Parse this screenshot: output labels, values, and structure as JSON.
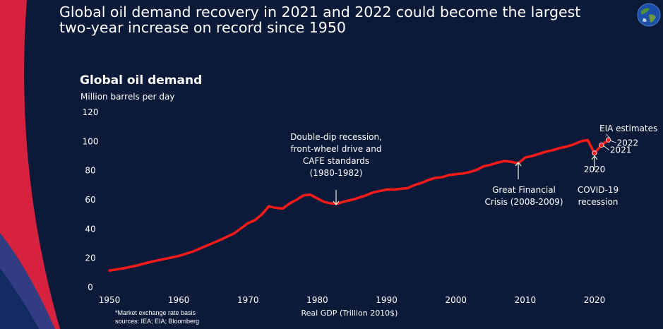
{
  "slide": {
    "title_line1": "Global oil demand recovery in 2021 and 2022 could become the largest",
    "title_line2": "two-year increase on record since 1950",
    "footnote_line1": "*Market exchange rate basis",
    "footnote_line2": "sources:  IEA; EIA; Bloomberg",
    "colors": {
      "background": "#0c1a3a",
      "accent_red": "#d6213f",
      "series": "#ff1a1a"
    },
    "icons": [
      "globe-icon"
    ]
  },
  "chart_data": {
    "type": "line",
    "title": "Global oil demand",
    "ylabel": "Million barrels per day",
    "xlabel": "Real GDP (Trillion 2010$)",
    "xlim": [
      1950,
      2022
    ],
    "ylim": [
      0,
      120
    ],
    "xticks": [
      "1950",
      "1960",
      "1970",
      "1980",
      "1990",
      "2000",
      "2010",
      "2020"
    ],
    "yticks": [
      "0",
      "20",
      "40",
      "60",
      "80",
      "100",
      "120"
    ],
    "grid": false,
    "series": [
      {
        "color": "#ff1a1a",
        "x": [
          1950,
          1952,
          1954,
          1956,
          1958,
          1960,
          1962,
          1964,
          1966,
          1968,
          1970,
          1971,
          1972,
          1973,
          1974,
          1975,
          1976,
          1977,
          1978,
          1979,
          1980,
          1981,
          1982,
          1983,
          1984,
          1985,
          1986,
          1987,
          1988,
          1989,
          1990,
          1991,
          1992,
          1993,
          1994,
          1995,
          1996,
          1997,
          1998,
          1999,
          2000,
          2001,
          2002,
          2003,
          2004,
          2005,
          2006,
          2007,
          2008,
          2009,
          2010,
          2011,
          2012,
          2013,
          2014,
          2015,
          2016,
          2017,
          2018,
          2019,
          2020
        ],
        "y": [
          11.5,
          13,
          15,
          17.5,
          19.5,
          21.5,
          24.5,
          28.5,
          32.5,
          37,
          44,
          46,
          50,
          55.5,
          54.5,
          54,
          57.5,
          60,
          63,
          63.5,
          61,
          58.5,
          57.5,
          57.5,
          59,
          60,
          61.5,
          63,
          65,
          66,
          67,
          67,
          67.5,
          68,
          70,
          71.5,
          73.5,
          75,
          75.5,
          77,
          77.5,
          78,
          79,
          80.5,
          83,
          84,
          85.5,
          86.5,
          86,
          85,
          89,
          90,
          91.5,
          93,
          94,
          95.5,
          96.5,
          98,
          100,
          101,
          92
        ]
      },
      {
        "name": "EIA estimates",
        "color": "#ff1a1a",
        "x": [
          2020,
          2021,
          2022
        ],
        "y": [
          92,
          97.5,
          101
        ]
      }
    ],
    "markers": [
      {
        "label": "2020",
        "x": 2020,
        "y": 92
      },
      {
        "label": "2021",
        "x": 2021,
        "y": 97.5
      },
      {
        "label": "2022",
        "x": 2022,
        "y": 101
      }
    ],
    "annotations": [
      {
        "lines": [
          "Double-dip recession,",
          "front-wheel drive and",
          "CAFE standards",
          "(1980-1982)"
        ],
        "x": 1982,
        "y": 57.5
      },
      {
        "lines": [
          "Great Financial",
          "Crisis (2008-2009)"
        ],
        "x": 2009,
        "y": 85
      },
      {
        "lines": [
          "COVID-19",
          "recession"
        ],
        "x": 2020,
        "y": 92
      }
    ]
  }
}
